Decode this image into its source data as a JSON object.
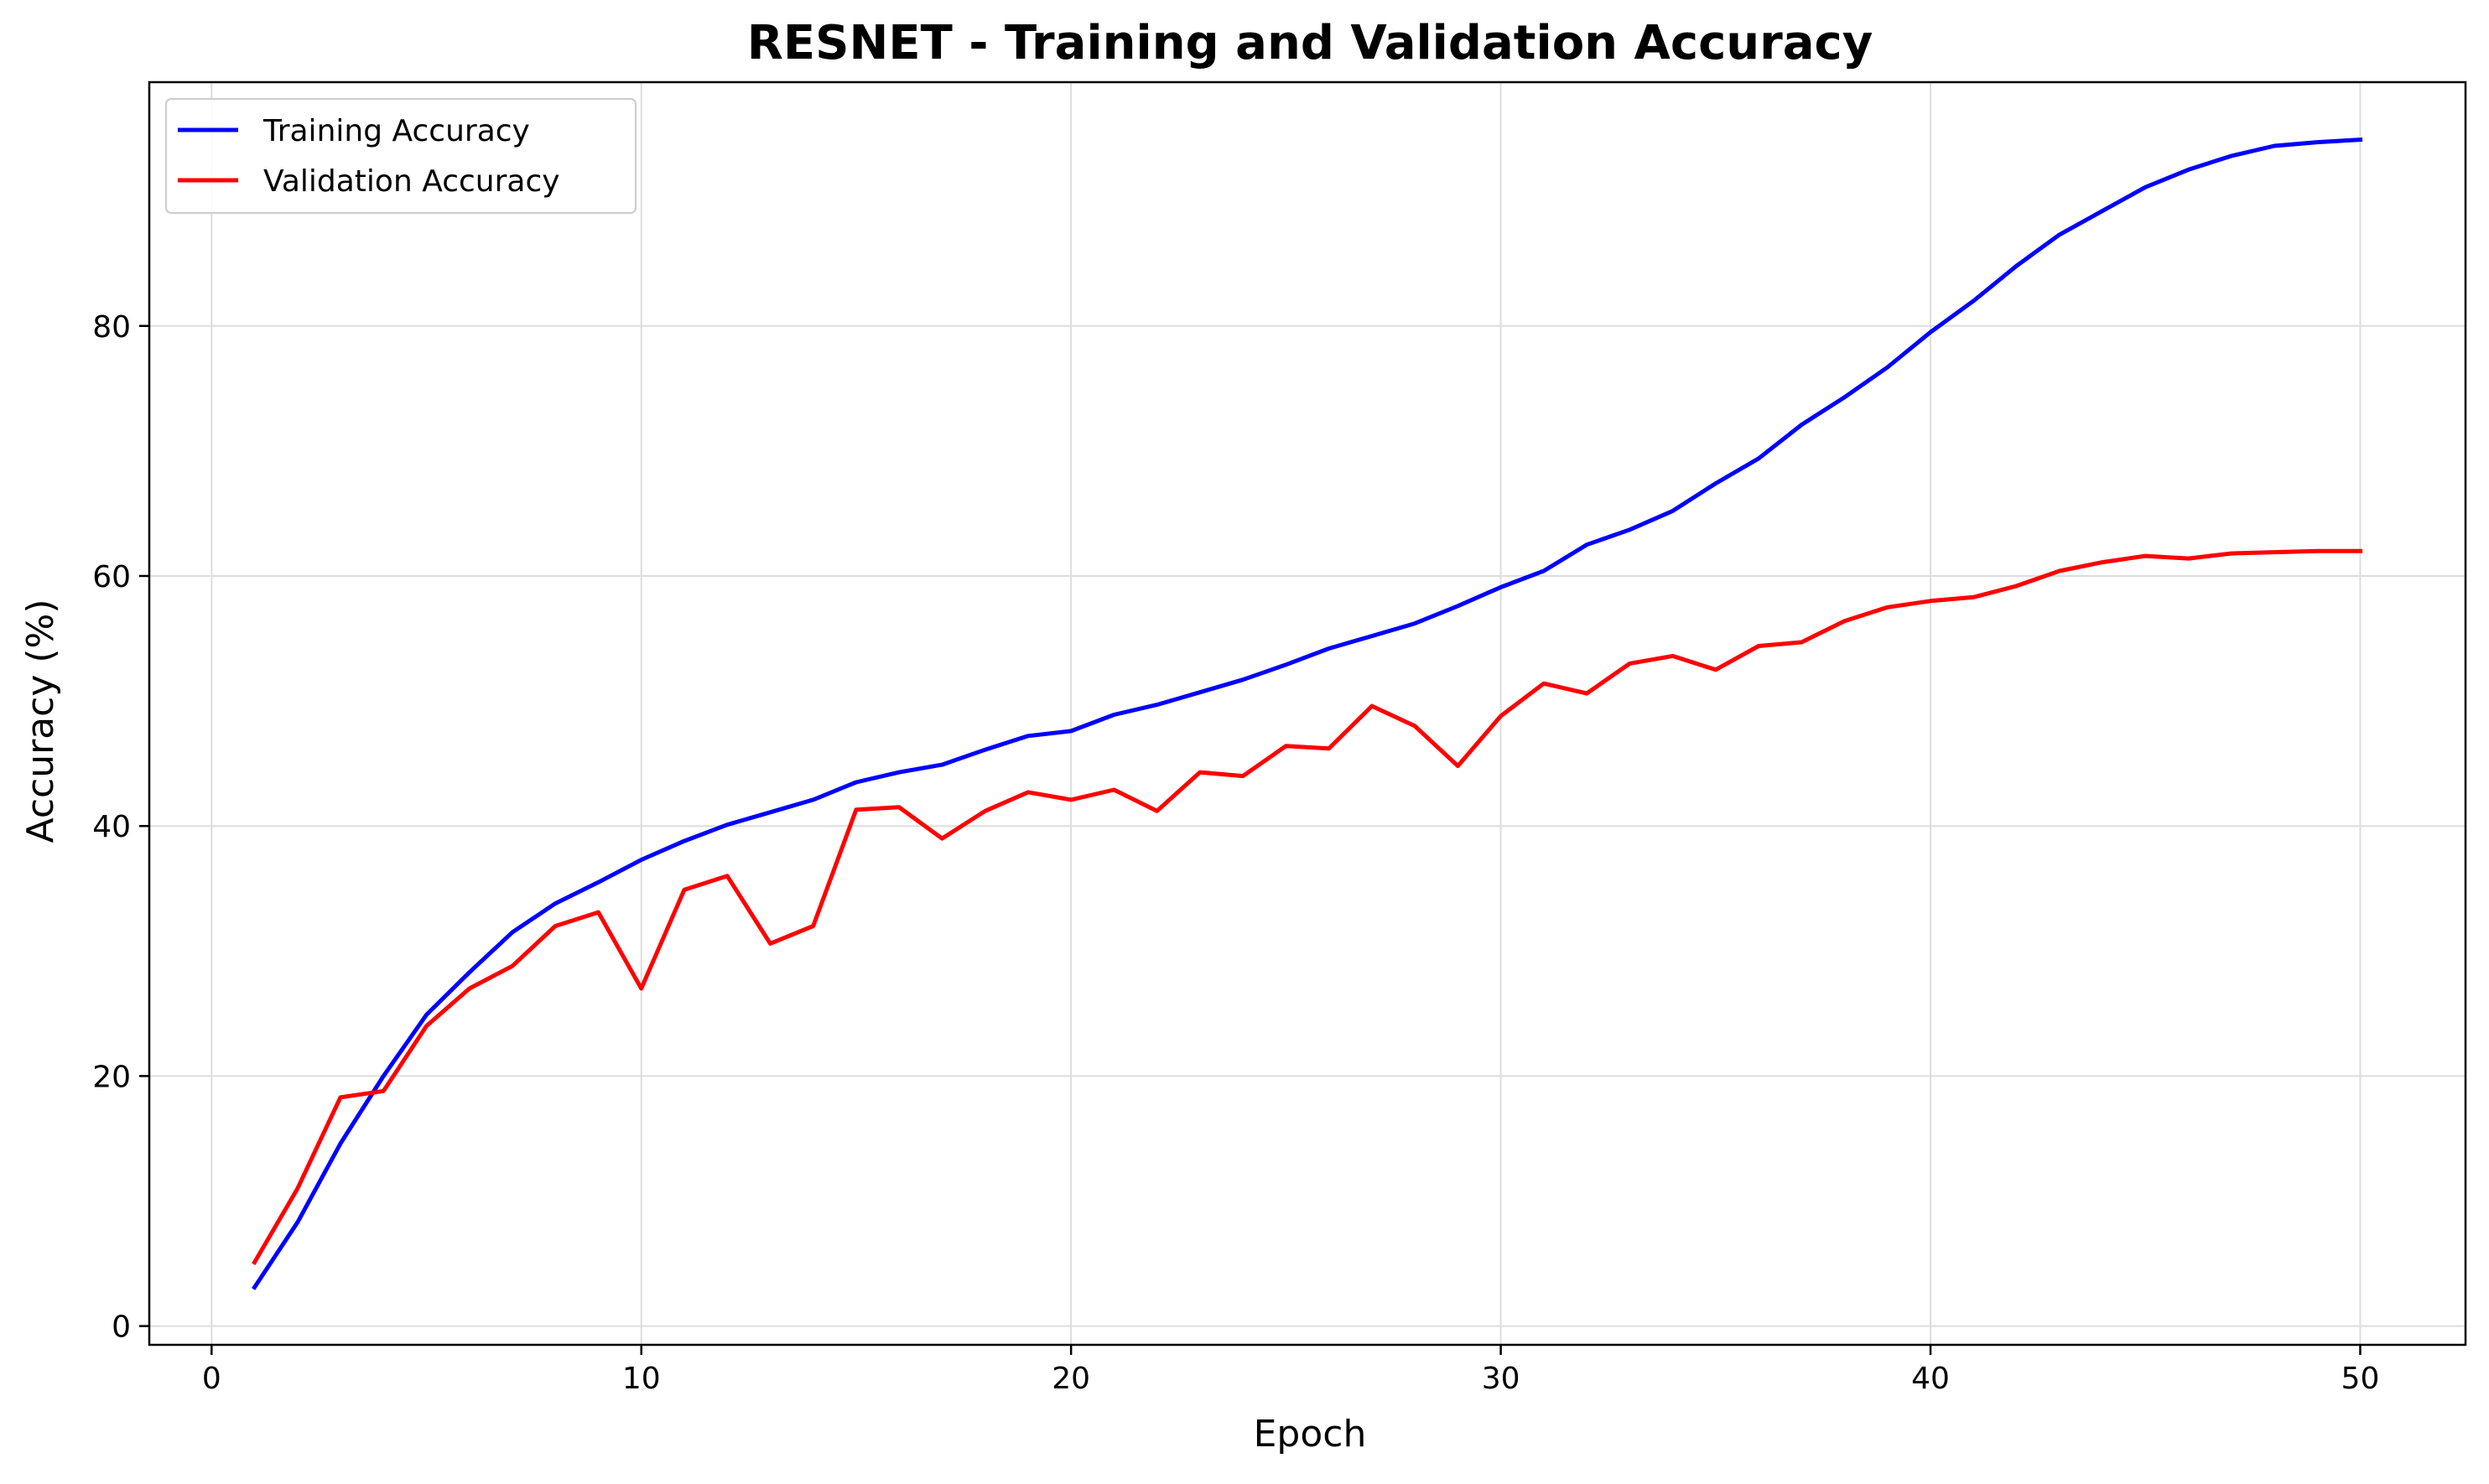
{
  "chart_data": {
    "type": "line",
    "title": "RESNET - Training and Validation Accuracy",
    "xlabel": "Epoch",
    "ylabel": "Accuracy (%)",
    "xlim": [
      -1.45,
      52.45
    ],
    "ylim": [
      -1.5,
      99.5
    ],
    "xticks": [
      0,
      10,
      20,
      30,
      40,
      50
    ],
    "yticks": [
      0,
      20,
      40,
      60,
      80
    ],
    "grid": true,
    "legend": "top-left",
    "x": [
      1,
      2,
      3,
      4,
      5,
      6,
      7,
      8,
      9,
      10,
      11,
      12,
      13,
      14,
      15,
      16,
      17,
      18,
      19,
      20,
      21,
      22,
      23,
      24,
      25,
      26,
      27,
      28,
      29,
      30,
      31,
      32,
      33,
      34,
      35,
      36,
      37,
      38,
      39,
      40,
      41,
      42,
      43,
      44,
      45,
      46,
      47,
      48,
      49,
      50
    ],
    "series": [
      {
        "name": "Training Accuracy",
        "color": "#0000ff",
        "values": [
          3.1,
          8.3,
          14.6,
          20.0,
          24.9,
          28.3,
          31.5,
          33.8,
          35.5,
          37.3,
          38.8,
          40.1,
          41.1,
          42.1,
          43.5,
          44.3,
          44.9,
          46.1,
          47.2,
          47.6,
          48.9,
          49.7,
          50.7,
          51.7,
          52.9,
          54.2,
          55.2,
          56.2,
          57.6,
          59.1,
          60.4,
          62.5,
          63.7,
          65.2,
          67.4,
          69.4,
          72.1,
          74.3,
          76.7,
          79.5,
          82.0,
          84.8,
          87.3,
          89.2,
          91.1,
          92.5,
          93.6,
          94.4,
          94.7,
          94.9
        ]
      },
      {
        "name": "Validation Accuracy",
        "color": "#ff0000",
        "values": [
          5.1,
          11.0,
          18.3,
          18.8,
          24.0,
          27.0,
          28.8,
          32.0,
          33.1,
          27.0,
          34.9,
          36.0,
          30.6,
          32.0,
          41.3,
          41.5,
          39.0,
          41.2,
          42.7,
          42.1,
          42.9,
          41.2,
          44.3,
          44.0,
          46.4,
          46.2,
          49.6,
          48.0,
          44.8,
          48.8,
          51.4,
          50.6,
          53.0,
          53.6,
          52.5,
          54.4,
          54.7,
          56.4,
          57.5,
          58.0,
          58.3,
          59.2,
          60.4,
          61.1,
          61.6,
          61.4,
          61.8,
          61.9,
          62.0,
          62.0
        ]
      }
    ]
  }
}
